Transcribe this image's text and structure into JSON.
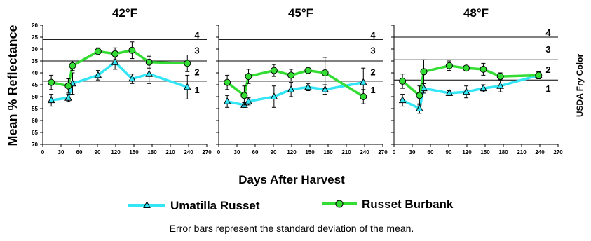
{
  "figure": {
    "ylabel": "Mean % Reflectance",
    "xlabel": "Days After Harvest",
    "right_label": "USDA Fry Color",
    "footnote": "Error bars represent the standard deviation of the mean.",
    "legend": [
      {
        "name": "Umatilla Russet",
        "color": "#33e5f5",
        "marker": "triangle"
      },
      {
        "name": "Russet Burbank",
        "color": "#33dd33",
        "marker": "circle"
      }
    ]
  },
  "chart_data": [
    {
      "type": "line",
      "title": "42°F",
      "xlim": [
        0,
        270
      ],
      "xticks": [
        0,
        30,
        60,
        90,
        120,
        150,
        180,
        210,
        240,
        270
      ],
      "ylim": [
        20,
        70
      ],
      "yticks": [
        20,
        25,
        30,
        35,
        40,
        45,
        50,
        55,
        60,
        65,
        70
      ],
      "y_inverted": true,
      "grid": false,
      "fry_color_thresholds": [
        26,
        35,
        43.5
      ],
      "fry_color_bands": [
        {
          "label": "4",
          "y": 24
        },
        {
          "label": "3",
          "y": 30.5
        },
        {
          "label": "2",
          "y": 39.5
        },
        {
          "label": "1",
          "y": 47
        }
      ],
      "series": [
        {
          "name": "Umatilla Russet",
          "color": "#33e5f5",
          "marker": "triangle",
          "x": [
            14,
            42,
            49,
            91,
            119,
            147,
            175,
            238
          ],
          "y": [
            51.5,
            50.5,
            44.5,
            41,
            35.5,
            42.5,
            40.5,
            46
          ],
          "err": [
            2.5,
            1.5,
            4.5,
            2,
            3,
            2,
            4,
            5
          ]
        },
        {
          "name": "Russet Burbank",
          "color": "#33dd33",
          "marker": "circle",
          "x": [
            14,
            42,
            49,
            91,
            119,
            147,
            175,
            238
          ],
          "y": [
            44,
            45.5,
            37,
            31,
            32,
            30.5,
            35.5,
            36
          ],
          "err": [
            3,
            3,
            2,
            1.5,
            2.5,
            3.5,
            2.5,
            3.5
          ]
        }
      ]
    },
    {
      "type": "line",
      "title": "45°F",
      "xlim": [
        0,
        270
      ],
      "xticks": [
        0,
        30,
        60,
        90,
        120,
        150,
        180,
        210,
        240,
        270
      ],
      "ylim": [
        20,
        70
      ],
      "yticks": [
        20,
        25,
        30,
        35,
        40,
        45,
        50,
        55,
        60,
        65,
        70
      ],
      "y_inverted": true,
      "grid": false,
      "fry_color_thresholds": [
        26,
        35,
        43.5
      ],
      "fry_color_bands": [
        {
          "label": "4",
          "y": 24
        },
        {
          "label": "3",
          "y": 30.5
        },
        {
          "label": "2",
          "y": 39.5
        },
        {
          "label": "1",
          "y": 47
        }
      ],
      "series": [
        {
          "name": "Umatilla Russet",
          "color": "#33e5f5",
          "marker": "triangle",
          "x": [
            14,
            42,
            49,
            91,
            119,
            147,
            175,
            238
          ],
          "y": [
            52,
            53.5,
            52,
            50,
            47,
            46,
            47,
            44
          ],
          "err": [
            2.5,
            1,
            1.5,
            4.5,
            3,
            1.5,
            2,
            6
          ]
        },
        {
          "name": "Russet Burbank",
          "color": "#33dd33",
          "marker": "circle",
          "x": [
            14,
            42,
            49,
            91,
            119,
            147,
            175,
            238
          ],
          "y": [
            44,
            49.5,
            41.5,
            39,
            41,
            39,
            40,
            50
          ],
          "err": [
            3,
            4,
            3,
            2.5,
            2.5,
            1,
            6.5,
            3
          ]
        }
      ]
    },
    {
      "type": "line",
      "title": "48°F",
      "xlim": [
        0,
        270
      ],
      "xticks": [
        0,
        30,
        60,
        90,
        120,
        150,
        180,
        210,
        240,
        270
      ],
      "ylim": [
        20,
        70
      ],
      "yticks": [
        20,
        25,
        30,
        35,
        40,
        45,
        50,
        55,
        60,
        65,
        70
      ],
      "y_inverted": true,
      "grid": false,
      "fry_color_thresholds": [
        25,
        34.5,
        43
      ],
      "fry_color_bands": [
        {
          "label": "4",
          "y": 23
        },
        {
          "label": "3",
          "y": 30
        },
        {
          "label": "2",
          "y": 38.5
        },
        {
          "label": "1",
          "y": 46.5
        }
      ],
      "series": [
        {
          "name": "Umatilla Russet",
          "color": "#33e5f5",
          "marker": "triangle",
          "x": [
            14,
            42,
            49,
            91,
            119,
            147,
            175,
            238
          ],
          "y": [
            51.5,
            55,
            46.5,
            48.5,
            48,
            46.5,
            45.5,
            41
          ],
          "err": [
            2.5,
            2,
            2,
            1,
            2.5,
            1.5,
            2.5,
            1.5
          ]
        },
        {
          "name": "Russet Burbank",
          "color": "#33dd33",
          "marker": "circle",
          "x": [
            14,
            42,
            49,
            91,
            119,
            147,
            175,
            238
          ],
          "y": [
            43.5,
            49.5,
            39.5,
            37,
            38,
            38.5,
            41.5,
            41
          ],
          "err": [
            3,
            4,
            5,
            2,
            1,
            2.5,
            1.5,
            1.5
          ]
        }
      ]
    }
  ]
}
